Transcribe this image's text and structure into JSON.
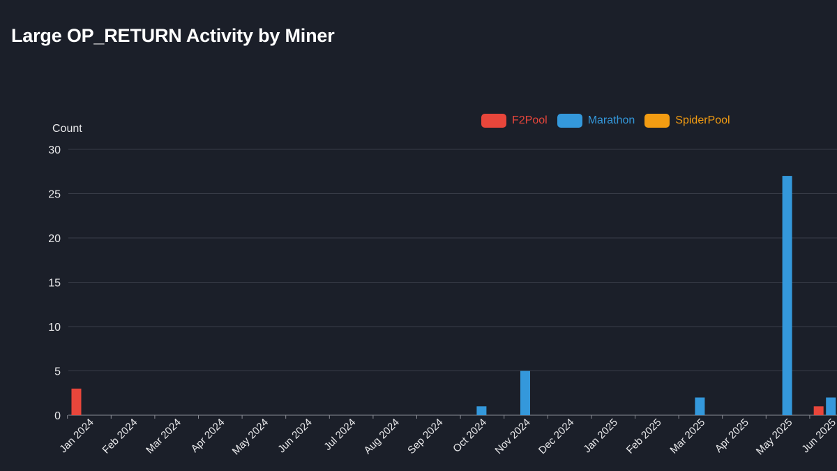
{
  "chart_data": {
    "type": "bar",
    "title": "Large OP_RETURN Activity by Miner",
    "ylabel": "Count",
    "xlabel": "",
    "ylim": [
      0,
      30
    ],
    "yticks": [
      0,
      5,
      10,
      15,
      20,
      25,
      30
    ],
    "grid": true,
    "legend_position": "top-center",
    "categories": [
      "Jan 2024",
      "Feb 2024",
      "Mar 2024",
      "Apr 2024",
      "May 2024",
      "Jun 2024",
      "Jul 2024",
      "Aug 2024",
      "Sep 2024",
      "Oct 2024",
      "Nov 2024",
      "Dec 2024",
      "Jan 2025",
      "Feb 2025",
      "Mar 2025",
      "Apr 2025",
      "May 2025",
      "Jun 2025"
    ],
    "series": [
      {
        "name": "F2Pool",
        "color": "#e8463b",
        "values": [
          3,
          0,
          0,
          0,
          0,
          0,
          0,
          0,
          0,
          0,
          0,
          0,
          0,
          0,
          0,
          0,
          0,
          1
        ]
      },
      {
        "name": "Marathon",
        "color": "#3498db",
        "values": [
          0,
          0,
          0,
          0,
          0,
          0,
          0,
          0,
          0,
          1,
          5,
          0,
          0,
          0,
          2,
          0,
          27,
          2
        ]
      },
      {
        "name": "SpiderPool",
        "color": "#f39c12",
        "values": [
          0,
          0,
          0,
          0,
          0,
          0,
          0,
          0,
          0,
          0,
          0,
          0,
          0,
          0,
          0,
          0,
          0,
          0
        ]
      }
    ]
  }
}
